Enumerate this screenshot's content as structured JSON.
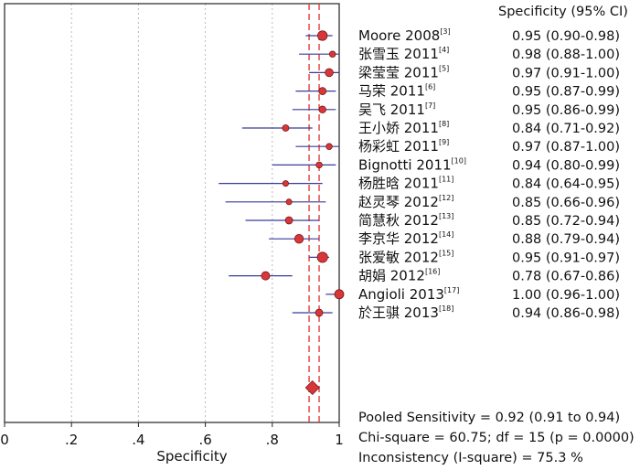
{
  "chart_data": {
    "type": "forest",
    "xlabel": "Specificity",
    "xlim": [
      0,
      1
    ],
    "xticks": [
      0,
      0.2,
      0.4,
      0.6,
      0.8,
      1
    ],
    "xtick_labels": [
      "0",
      ".2",
      ".4",
      ".6",
      ".8",
      "1"
    ],
    "column_header": "Specificity (95% CI)",
    "pooled": {
      "value": 0.92,
      "ci": [
        0.91,
        0.94
      ]
    },
    "studies": [
      {
        "name": "Moore 2008",
        "ref": "[3]",
        "value": 0.95,
        "lo": 0.9,
        "hi": 0.98,
        "ci_text": "0.95 (0.90-0.98)",
        "weight": 1.25
      },
      {
        "name": "张雪玉 2011",
        "ref": "[4]",
        "value": 0.98,
        "lo": 0.88,
        "hi": 1.0,
        "ci_text": "0.98 (0.88-1.00)",
        "weight": 0.8
      },
      {
        "name": "梁莹莹 2011",
        "ref": "[5]",
        "value": 0.97,
        "lo": 0.91,
        "hi": 1.0,
        "ci_text": "0.97 (0.91-1.00)",
        "weight": 1.05
      },
      {
        "name": "马荣 2011",
        "ref": "[6]",
        "value": 0.95,
        "lo": 0.87,
        "hi": 0.99,
        "ci_text": "0.95 (0.87-0.99)",
        "weight": 0.95
      },
      {
        "name": "吴飞 2011",
        "ref": "[7]",
        "value": 0.95,
        "lo": 0.86,
        "hi": 0.99,
        "ci_text": "0.95 (0.86-0.99)",
        "weight": 0.9
      },
      {
        "name": "王小娇 2011",
        "ref": "[8]",
        "value": 0.84,
        "lo": 0.71,
        "hi": 0.92,
        "ci_text": "0.84 (0.71-0.92)",
        "weight": 0.85
      },
      {
        "name": "杨彩虹 2011",
        "ref": "[9]",
        "value": 0.97,
        "lo": 0.87,
        "hi": 1.0,
        "ci_text": "0.97 (0.87-1.00)",
        "weight": 0.8
      },
      {
        "name": "Bignotti 2011",
        "ref": "[10]",
        "value": 0.94,
        "lo": 0.8,
        "hi": 0.99,
        "ci_text": "0.94 (0.80-0.99)",
        "weight": 0.8
      },
      {
        "name": "杨胜晗 2011",
        "ref": "[11]",
        "value": 0.84,
        "lo": 0.64,
        "hi": 0.95,
        "ci_text": "0.84 (0.64-0.95)",
        "weight": 0.75
      },
      {
        "name": "赵灵琴 2012",
        "ref": "[12]",
        "value": 0.85,
        "lo": 0.66,
        "hi": 0.96,
        "ci_text": "0.85 (0.66-0.96)",
        "weight": 0.75
      },
      {
        "name": "简慧秋 2012",
        "ref": "[13]",
        "value": 0.85,
        "lo": 0.72,
        "hi": 0.94,
        "ci_text": "0.85 (0.72-0.94)",
        "weight": 0.95
      },
      {
        "name": "李京华 2012",
        "ref": "[14]",
        "value": 0.88,
        "lo": 0.79,
        "hi": 0.94,
        "ci_text": "0.88 (0.79-0.94)",
        "weight": 1.15
      },
      {
        "name": "张爱敏 2012",
        "ref": "[15]",
        "value": 0.95,
        "lo": 0.91,
        "hi": 0.97,
        "ci_text": "0.95 (0.91-0.97)",
        "weight": 1.35
      },
      {
        "name": "胡娟 2012",
        "ref": "[16]",
        "value": 0.78,
        "lo": 0.67,
        "hi": 0.86,
        "ci_text": "0.78 (0.67-0.86)",
        "weight": 1.1
      },
      {
        "name": "Angioli 2013",
        "ref": "[17]",
        "value": 1.0,
        "lo": 0.96,
        "hi": 1.0,
        "ci_text": "1.00 (0.96-1.00)",
        "weight": 1.2
      },
      {
        "name": "於王骐 2013",
        "ref": "[18]",
        "value": 0.94,
        "lo": 0.86,
        "hi": 0.98,
        "ci_text": "0.94 (0.86-0.98)",
        "weight": 0.95
      }
    ],
    "stats": [
      "Pooled Sensitivity = 0.92 (0.91 to 0.94)",
      "Chi-square = 60.75; df = 15 (p = 0.0000)",
      "Inconsistency (I-square) = 75.3 %"
    ]
  },
  "colors": {
    "marker": "#d8373a",
    "ci_line": "#3a3a9a",
    "pooled_line": "#e03030",
    "grid": "#b8b8b8",
    "axis": "#222222"
  }
}
